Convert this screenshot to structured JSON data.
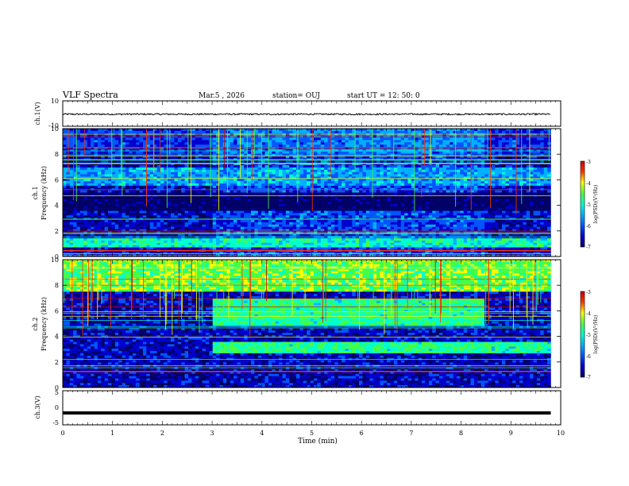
{
  "header": {
    "title": "VLF Spectra",
    "date": "Mar.5  , 2026",
    "station": "station= OUJ",
    "start_ut": "start  UT  =   12: 50: 0"
  },
  "colors": {
    "colormap": [
      "#000066",
      "#0000cc",
      "#0055ff",
      "#00b0ff",
      "#00ffcc",
      "#44ff44",
      "#ffff00",
      "#ff3300",
      "#cc0000"
    ],
    "waveform": "#000000"
  },
  "chart_data": [
    {
      "type": "line",
      "panel": "ch1-waveform",
      "ylabel": "ch.1(V)",
      "ylim": [
        -10,
        10
      ],
      "yticks": [
        "10",
        "-10"
      ],
      "x": [
        0,
        9.8
      ],
      "series": [
        {
          "values": [
            -0.5,
            -0.5
          ]
        }
      ]
    },
    {
      "type": "heatmap",
      "panel": "ch1-spectrogram",
      "ylabel": [
        "ch.1",
        "Frequency  (kHz)"
      ],
      "ylim": [
        0,
        10
      ],
      "yticks": [
        "0",
        "2",
        "4",
        "6",
        "8",
        "10"
      ],
      "colorbar": {
        "label": "log(PSD)(V²/Hz)",
        "range": [
          -7,
          -3
        ],
        "ticks": [
          "-3",
          "-4",
          "-5",
          "-6",
          "-7"
        ]
      },
      "time_segments": [
        {
          "from": 0,
          "to": 3,
          "level": "low"
        },
        {
          "from": 3,
          "to": 5.5,
          "level": "medium"
        },
        {
          "from": 5.5,
          "to": 8.5,
          "level": "medium"
        },
        {
          "from": 8.5,
          "to": 9.8,
          "level": "low"
        }
      ],
      "features": [
        {
          "kind": "band",
          "freq_khz": [
            0.8,
            1.4
          ],
          "level": -5
        },
        {
          "kind": "band",
          "freq_khz": [
            5.6,
            7.0
          ],
          "level": -5.5
        },
        {
          "kind": "dark-band",
          "freq_khz": [
            3.5,
            5.0
          ],
          "level": -7
        },
        {
          "kind": "line",
          "freq_khz": 0.5,
          "level": -3.5
        },
        {
          "kind": "line",
          "freq_khz": 7.6,
          "level": -4.5
        }
      ]
    },
    {
      "type": "heatmap",
      "panel": "ch2-spectrogram",
      "ylabel": [
        "ch.2",
        "Frequency  (kHz)"
      ],
      "ylim": [
        0,
        10
      ],
      "yticks": [
        "0",
        "2",
        "4",
        "6",
        "8",
        "10"
      ],
      "colorbar": {
        "label": "log(PSD)(V²/Hz)",
        "range": [
          -7,
          -3
        ],
        "ticks": [
          "-3",
          "-4",
          "-5",
          "-6",
          "-7"
        ]
      },
      "features": [
        {
          "kind": "band",
          "freq_khz": [
            7.5,
            10.0
          ],
          "level": -4.5
        },
        {
          "kind": "band",
          "freq_khz": [
            4.8,
            7.0
          ],
          "time_min": [
            3,
            8.5
          ],
          "level": -4.8
        },
        {
          "kind": "band",
          "freq_khz": [
            2.6,
            3.6
          ],
          "time_min": [
            3,
            9.8
          ],
          "level": -4.8
        },
        {
          "kind": "line",
          "freq_khz": 1.3,
          "level": -3.5
        }
      ]
    },
    {
      "type": "line",
      "panel": "ch3-waveform",
      "ylabel": "ch.3(V)",
      "ylim": [
        -5,
        5
      ],
      "yticks": [
        "5",
        "0",
        "-5"
      ],
      "x": [
        0,
        9.8
      ],
      "series": [
        {
          "values": [
            -1.5,
            -1.5
          ]
        }
      ]
    }
  ],
  "xaxis": {
    "label": "Time  (min)",
    "range": [
      0,
      10
    ],
    "ticks": [
      "0",
      "1",
      "2",
      "3",
      "4",
      "5",
      "6",
      "7",
      "8",
      "9",
      "10"
    ]
  }
}
